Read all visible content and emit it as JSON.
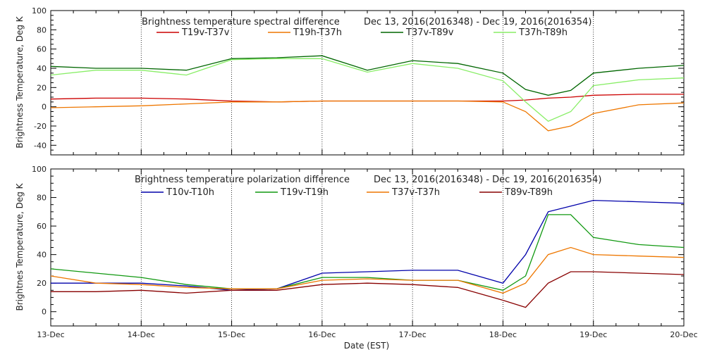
{
  "chart_data": [
    {
      "type": "line",
      "title": "Brightness temperature spectral difference",
      "date_range": "Dec 13, 2016(2016348) - Dec 19, 2016(2016354)",
      "ylabel": "Brightness Temperature, Deg K",
      "xlim": [
        "2016-12-13",
        "2016-12-20"
      ],
      "ylim": [
        -50,
        100
      ],
      "yticks": [
        -40,
        -20,
        0,
        20,
        40,
        60,
        80,
        100
      ],
      "grid": "vertical dotted lines at each day",
      "legend": "top, single row",
      "x": [
        "2016-12-13",
        "2016-12-13T12:00",
        "2016-12-14",
        "2016-12-14T12:00",
        "2016-12-15",
        "2016-12-15T12:00",
        "2016-12-16",
        "2016-12-16T12:00",
        "2016-12-17",
        "2016-12-17T12:00",
        "2016-12-18",
        "2016-12-18T06:00",
        "2016-12-18T12:00",
        "2016-12-18T18:00",
        "2016-12-19",
        "2016-12-19T12:00",
        "2016-12-20"
      ],
      "series": [
        {
          "name": "T19v-T37v",
          "color": "#cc0000",
          "values": [
            8,
            9,
            9,
            8,
            6,
            5,
            6,
            6,
            6,
            6,
            6,
            7,
            9,
            10,
            12,
            13,
            13
          ]
        },
        {
          "name": "T19h-T37h",
          "color": "#ee7700",
          "values": [
            -1,
            0,
            1,
            3,
            5,
            5,
            6,
            6,
            6,
            6,
            5,
            -5,
            -25,
            -20,
            -7,
            2,
            4
          ]
        },
        {
          "name": "T37v-T89v",
          "color": "#006600",
          "values": [
            42,
            40,
            40,
            38,
            50,
            51,
            53,
            38,
            48,
            45,
            35,
            18,
            12,
            17,
            35,
            40,
            43
          ]
        },
        {
          "name": "T37h-T89h",
          "color": "#88ee66",
          "values": [
            33,
            38,
            38,
            33,
            49,
            50,
            50,
            36,
            45,
            40,
            27,
            5,
            -15,
            -5,
            22,
            28,
            30
          ]
        }
      ]
    },
    {
      "type": "line",
      "title": "Brightness temperature polarization difference",
      "date_range": "Dec 13, 2016(2016348) - Dec 19, 2016(2016354)",
      "ylabel": "Brightnes Temperature, Deg K",
      "xlabel": "Date (EST)",
      "xlim": [
        "2016-12-13",
        "2016-12-20"
      ],
      "ylim": [
        -10,
        100
      ],
      "yticks": [
        0,
        20,
        40,
        60,
        80,
        100
      ],
      "xtick_labels": [
        "13-Dec",
        "14-Dec",
        "15-Dec",
        "16-Dec",
        "17-Dec",
        "18-Dec",
        "19-Dec",
        "20-Dec"
      ],
      "grid": "vertical dotted lines at each day",
      "legend": "top, single row",
      "x": [
        "2016-12-13",
        "2016-12-13T12:00",
        "2016-12-14",
        "2016-12-14T12:00",
        "2016-12-15",
        "2016-12-15T12:00",
        "2016-12-16",
        "2016-12-16T12:00",
        "2016-12-17",
        "2016-12-17T12:00",
        "2016-12-18",
        "2016-12-18T06:00",
        "2016-12-18T12:00",
        "2016-12-18T18:00",
        "2016-12-19",
        "2016-12-19T12:00",
        "2016-12-20"
      ],
      "series": [
        {
          "name": "T10v-T10h",
          "color": "#0000aa",
          "values": [
            20,
            20,
            20,
            18,
            15,
            16,
            27,
            28,
            29,
            29,
            20,
            40,
            70,
            74,
            78,
            77,
            76
          ]
        },
        {
          "name": "T19v-T19h",
          "color": "#119911",
          "values": [
            30,
            27,
            24,
            19,
            16,
            16,
            24,
            24,
            22,
            22,
            15,
            25,
            68,
            68,
            52,
            47,
            45
          ]
        },
        {
          "name": "T37v-T37h",
          "color": "#ee7700",
          "values": [
            25,
            20,
            19,
            17,
            16,
            16,
            22,
            23,
            22,
            22,
            13,
            20,
            40,
            45,
            40,
            39,
            38
          ]
        },
        {
          "name": "T89v-T89h",
          "color": "#880000",
          "values": [
            14,
            14,
            15,
            13,
            15,
            15,
            19,
            20,
            19,
            17,
            8,
            3,
            20,
            28,
            28,
            27,
            26
          ]
        }
      ]
    }
  ]
}
